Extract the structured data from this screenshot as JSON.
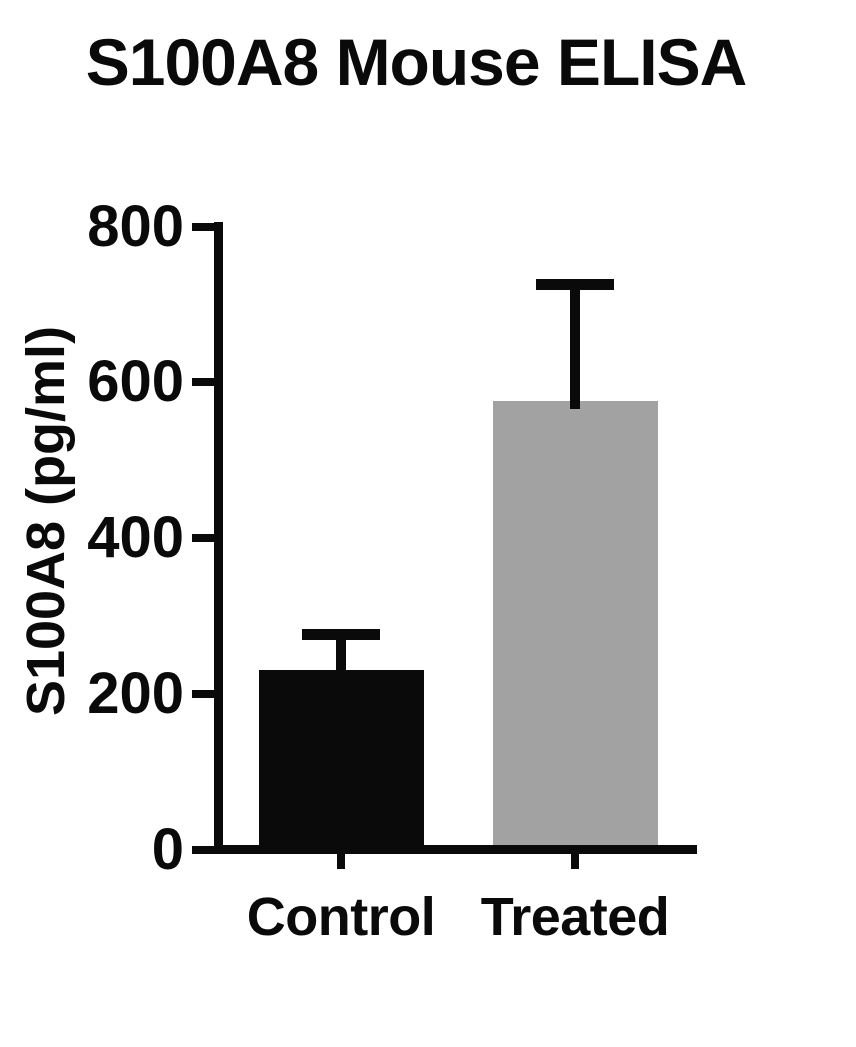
{
  "chart_data": {
    "type": "bar",
    "title": "S100A8 Mouse ELISA",
    "xlabel": "",
    "ylabel": "S100A8 (pg/ml)",
    "categories": [
      "Control",
      "Treated"
    ],
    "values": [
      225,
      570
    ],
    "errors_plus": [
      45,
      150
    ],
    "bar_colors": [
      "#0a0a0a",
      "#a2a2a2"
    ],
    "ylim": [
      0,
      800
    ],
    "yticks": [
      0,
      200,
      400,
      600,
      800
    ],
    "grid": false,
    "legend": false,
    "error_bar_style": "upper-only-with-cap",
    "axis_color": "#0a0a0a",
    "background_color": "#ffffff"
  }
}
